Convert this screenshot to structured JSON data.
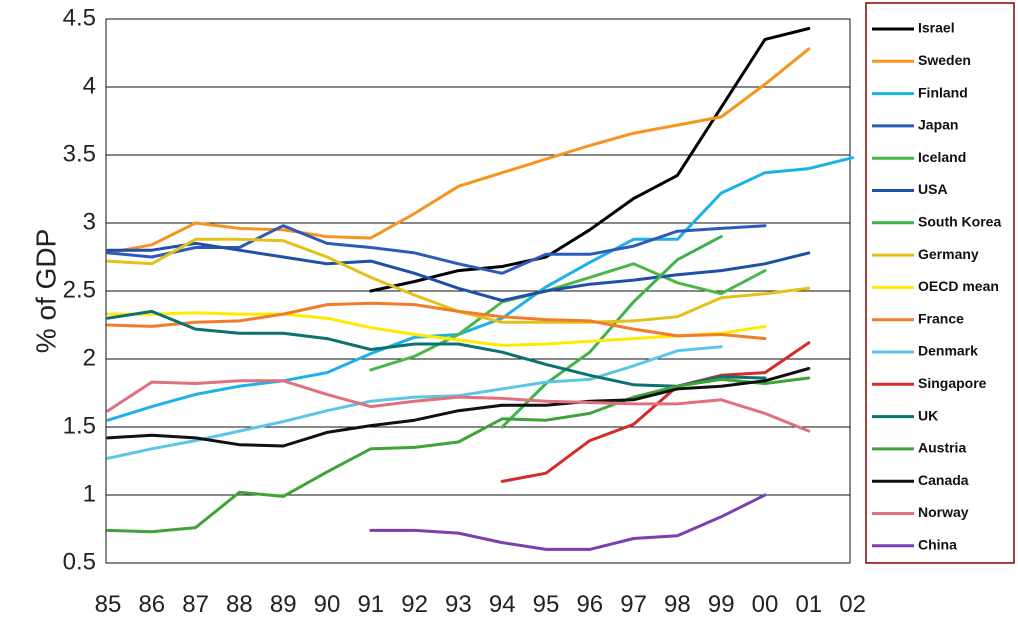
{
  "chart_data": {
    "type": "line",
    "ylabel": "% of GDP",
    "xlabel": "",
    "ylim": [
      0.5,
      4.5
    ],
    "grid": "horizontal",
    "legend_position": "right",
    "x": [
      "85",
      "86",
      "87",
      "88",
      "89",
      "90",
      "91",
      "92",
      "93",
      "94",
      "95",
      "96",
      "97",
      "98",
      "99",
      "00",
      "01",
      "02"
    ],
    "yticks": [
      "0.5",
      "1",
      "1.5",
      "2",
      "2.5",
      "3",
      "3.5",
      "4",
      "4.5"
    ],
    "series": [
      {
        "name": "Israel",
        "color": "#000000",
        "points": [
          [
            6,
            2.5
          ],
          [
            7,
            2.57
          ],
          [
            8,
            2.65
          ],
          [
            9,
            2.68
          ],
          [
            10,
            2.75
          ],
          [
            11,
            2.95
          ],
          [
            12,
            3.18
          ],
          [
            13,
            3.35
          ],
          [
            14,
            3.85
          ],
          [
            15,
            4.35
          ],
          [
            16,
            4.43
          ]
        ]
      },
      {
        "name": "Sweden",
        "color": "#F7941D",
        "points": [
          [
            0,
            2.78
          ],
          [
            1,
            2.84
          ],
          [
            2,
            3.0
          ],
          [
            3,
            2.96
          ],
          [
            4,
            2.95
          ],
          [
            5,
            2.9
          ],
          [
            6,
            2.89
          ],
          [
            7,
            3.07
          ],
          [
            8,
            3.27
          ],
          [
            9,
            3.37
          ],
          [
            10,
            3.47
          ],
          [
            11,
            3.57
          ],
          [
            12,
            3.66
          ],
          [
            13,
            3.72
          ],
          [
            14,
            3.78
          ],
          [
            15,
            4.02
          ],
          [
            16,
            4.28
          ]
        ]
      },
      {
        "name": "Finland",
        "color": "#1EB1E7",
        "points": [
          [
            0,
            1.55
          ],
          [
            1,
            1.65
          ],
          [
            2,
            1.74
          ],
          [
            3,
            1.8
          ],
          [
            4,
            1.84
          ],
          [
            5,
            1.9
          ],
          [
            6,
            2.04
          ],
          [
            7,
            2.16
          ],
          [
            8,
            2.18
          ],
          [
            9,
            2.3
          ],
          [
            10,
            2.53
          ],
          [
            11,
            2.71
          ],
          [
            12,
            2.88
          ],
          [
            13,
            2.88
          ],
          [
            14,
            3.22
          ],
          [
            15,
            3.37
          ],
          [
            16,
            3.4
          ],
          [
            17,
            3.48
          ]
        ]
      },
      {
        "name": "Japan",
        "color": "#2E5BB8",
        "points": [
          [
            0,
            2.78
          ],
          [
            1,
            2.75
          ],
          [
            2,
            2.82
          ],
          [
            3,
            2.82
          ],
          [
            4,
            2.98
          ],
          [
            5,
            2.85
          ],
          [
            6,
            2.82
          ],
          [
            7,
            2.78
          ],
          [
            8,
            2.7
          ],
          [
            9,
            2.63
          ],
          [
            10,
            2.77
          ],
          [
            11,
            2.77
          ],
          [
            12,
            2.83
          ],
          [
            13,
            2.94
          ],
          [
            14,
            2.96
          ],
          [
            15,
            2.98
          ]
        ]
      },
      {
        "name": "Iceland",
        "color": "#4CB748",
        "points": [
          [
            6,
            1.92
          ],
          [
            7,
            2.02
          ],
          [
            8,
            2.18
          ],
          [
            9,
            2.42
          ],
          [
            10,
            2.5
          ],
          [
            11,
            2.6
          ],
          [
            12,
            2.7
          ],
          [
            13,
            2.56
          ],
          [
            14,
            2.48
          ],
          [
            15,
            2.65
          ]
        ]
      },
      {
        "name": "USA",
        "color": "#1F4FA8",
        "points": [
          [
            0,
            2.8
          ],
          [
            1,
            2.8
          ],
          [
            2,
            2.85
          ],
          [
            3,
            2.8
          ],
          [
            4,
            2.75
          ],
          [
            5,
            2.7
          ],
          [
            6,
            2.72
          ],
          [
            7,
            2.63
          ],
          [
            8,
            2.52
          ],
          [
            9,
            2.43
          ],
          [
            10,
            2.5
          ],
          [
            11,
            2.55
          ],
          [
            12,
            2.58
          ],
          [
            13,
            2.62
          ],
          [
            14,
            2.65
          ],
          [
            15,
            2.7
          ],
          [
            16,
            2.78
          ]
        ]
      },
      {
        "name": "South Korea",
        "color": "#3CB44A",
        "points": [
          [
            9,
            1.5
          ],
          [
            10,
            1.82
          ],
          [
            11,
            2.05
          ],
          [
            12,
            2.42
          ],
          [
            13,
            2.73
          ],
          [
            14,
            2.9
          ]
        ]
      },
      {
        "name": "Germany",
        "color": "#E2C21A",
        "points": [
          [
            0,
            2.72
          ],
          [
            1,
            2.7
          ],
          [
            2,
            2.88
          ],
          [
            3,
            2.88
          ],
          [
            4,
            2.87
          ],
          [
            5,
            2.75
          ],
          [
            6,
            2.6
          ],
          [
            7,
            2.47
          ],
          [
            8,
            2.35
          ],
          [
            9,
            2.27
          ],
          [
            10,
            2.27
          ],
          [
            11,
            2.27
          ],
          [
            12,
            2.28
          ],
          [
            13,
            2.31
          ],
          [
            14,
            2.45
          ],
          [
            15,
            2.48
          ],
          [
            16,
            2.52
          ]
        ]
      },
      {
        "name": "OECD mean",
        "color": "#FFEA00",
        "points": [
          [
            0,
            2.33
          ],
          [
            1,
            2.33
          ],
          [
            2,
            2.34
          ],
          [
            3,
            2.33
          ],
          [
            4,
            2.33
          ],
          [
            5,
            2.3
          ],
          [
            6,
            2.23
          ],
          [
            7,
            2.18
          ],
          [
            8,
            2.14
          ],
          [
            9,
            2.1
          ],
          [
            10,
            2.11
          ],
          [
            11,
            2.13
          ],
          [
            12,
            2.15
          ],
          [
            13,
            2.17
          ],
          [
            14,
            2.19
          ],
          [
            15,
            2.24
          ]
        ]
      },
      {
        "name": "France",
        "color": "#F37C29",
        "points": [
          [
            0,
            2.25
          ],
          [
            1,
            2.24
          ],
          [
            2,
            2.27
          ],
          [
            3,
            2.28
          ],
          [
            4,
            2.33
          ],
          [
            5,
            2.4
          ],
          [
            6,
            2.41
          ],
          [
            7,
            2.4
          ],
          [
            8,
            2.35
          ],
          [
            9,
            2.31
          ],
          [
            10,
            2.29
          ],
          [
            11,
            2.28
          ],
          [
            12,
            2.22
          ],
          [
            13,
            2.17
          ],
          [
            14,
            2.18
          ],
          [
            15,
            2.15
          ]
        ]
      },
      {
        "name": "Denmark",
        "color": "#5CC6E6",
        "points": [
          [
            0,
            1.27
          ],
          [
            1,
            1.34
          ],
          [
            2,
            1.4
          ],
          [
            3,
            1.47
          ],
          [
            4,
            1.54
          ],
          [
            5,
            1.62
          ],
          [
            6,
            1.69
          ],
          [
            7,
            1.72
          ],
          [
            8,
            1.73
          ],
          [
            9,
            1.78
          ],
          [
            10,
            1.83
          ],
          [
            11,
            1.85
          ],
          [
            12,
            1.95
          ],
          [
            13,
            2.06
          ],
          [
            14,
            2.09
          ]
        ]
      },
      {
        "name": "Singapore",
        "color": "#D42B2B",
        "points": [
          [
            9,
            1.1
          ],
          [
            10,
            1.16
          ],
          [
            11,
            1.4
          ],
          [
            12,
            1.52
          ],
          [
            13,
            1.8
          ],
          [
            14,
            1.88
          ],
          [
            15,
            1.9
          ],
          [
            16,
            2.12
          ]
        ]
      },
      {
        "name": "UK",
        "color": "#0B7171",
        "points": [
          [
            0,
            2.3
          ],
          [
            1,
            2.35
          ],
          [
            2,
            2.22
          ],
          [
            3,
            2.19
          ],
          [
            4,
            2.19
          ],
          [
            5,
            2.15
          ],
          [
            6,
            2.07
          ],
          [
            7,
            2.11
          ],
          [
            8,
            2.11
          ],
          [
            9,
            2.05
          ],
          [
            10,
            1.96
          ],
          [
            11,
            1.88
          ],
          [
            12,
            1.81
          ],
          [
            13,
            1.8
          ],
          [
            14,
            1.87
          ],
          [
            15,
            1.86
          ]
        ]
      },
      {
        "name": "Austria",
        "color": "#3FA338",
        "points": [
          [
            0,
            0.74
          ],
          [
            1,
            0.73
          ],
          [
            2,
            0.76
          ],
          [
            3,
            1.02
          ],
          [
            4,
            0.99
          ],
          [
            5,
            1.17
          ],
          [
            6,
            1.34
          ],
          [
            7,
            1.35
          ],
          [
            8,
            1.39
          ],
          [
            9,
            1.56
          ],
          [
            10,
            1.55
          ],
          [
            11,
            1.6
          ],
          [
            12,
            1.72
          ],
          [
            13,
            1.8
          ],
          [
            14,
            1.85
          ],
          [
            15,
            1.82
          ],
          [
            16,
            1.86
          ]
        ]
      },
      {
        "name": "Canada",
        "color": "#111111",
        "points": [
          [
            0,
            1.42
          ],
          [
            1,
            1.44
          ],
          [
            2,
            1.42
          ],
          [
            3,
            1.37
          ],
          [
            4,
            1.36
          ],
          [
            5,
            1.46
          ],
          [
            6,
            1.51
          ],
          [
            7,
            1.55
          ],
          [
            8,
            1.62
          ],
          [
            9,
            1.66
          ],
          [
            10,
            1.66
          ],
          [
            11,
            1.69
          ],
          [
            12,
            1.7
          ],
          [
            13,
            1.78
          ],
          [
            14,
            1.8
          ],
          [
            15,
            1.84
          ],
          [
            16,
            1.93
          ]
        ]
      },
      {
        "name": "Norway",
        "color": "#E0707D",
        "points": [
          [
            0,
            1.62
          ],
          [
            1,
            1.83
          ],
          [
            2,
            1.82
          ],
          [
            3,
            1.84
          ],
          [
            4,
            1.84
          ],
          [
            5,
            1.74
          ],
          [
            6,
            1.65
          ],
          [
            7,
            1.69
          ],
          [
            8,
            1.72
          ],
          [
            9,
            1.71
          ],
          [
            10,
            1.69
          ],
          [
            11,
            1.68
          ],
          [
            12,
            1.67
          ],
          [
            13,
            1.67
          ],
          [
            14,
            1.7
          ],
          [
            15,
            1.6
          ],
          [
            16,
            1.47
          ]
        ]
      },
      {
        "name": "China",
        "color": "#7B3FB0",
        "points": [
          [
            6,
            0.74
          ],
          [
            7,
            0.74
          ],
          [
            8,
            0.72
          ],
          [
            9,
            0.65
          ],
          [
            10,
            0.6
          ],
          [
            11,
            0.6
          ],
          [
            12,
            0.68
          ],
          [
            13,
            0.7
          ],
          [
            14,
            0.84
          ],
          [
            15,
            1.0
          ]
        ]
      }
    ]
  }
}
